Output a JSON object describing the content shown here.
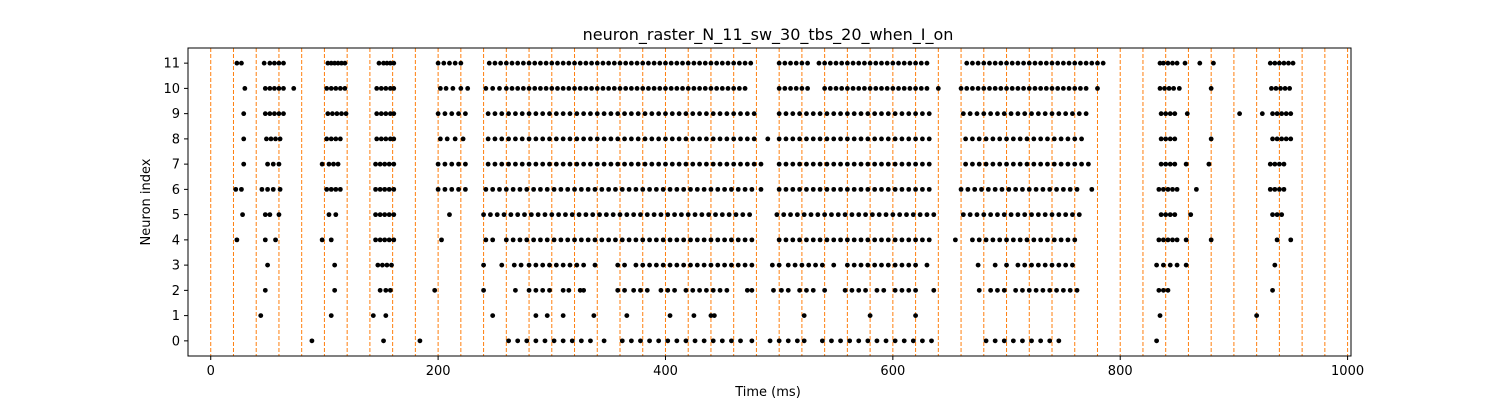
{
  "chart_data": {
    "type": "scatter",
    "title": "neuron_raster_N_11_sw_30_tbs_20_when_I_on",
    "xlabel": "Time (ms)",
    "ylabel": "Neuron index",
    "xlim": [
      -20,
      1003
    ],
    "ylim": [
      -0.6,
      11.6
    ],
    "x_ticks": [
      0,
      200,
      400,
      600,
      800,
      1000
    ],
    "y_ticks": [
      0,
      1,
      2,
      3,
      4,
      5,
      6,
      7,
      8,
      9,
      10,
      11
    ],
    "grid": false,
    "legend": "none",
    "marker_color": "#000000",
    "stimulus_marker_color": "#ff7f0e",
    "stimulus_times_ms": [
      0,
      20,
      40,
      60,
      80,
      100,
      120,
      140,
      160,
      180,
      200,
      220,
      240,
      260,
      280,
      300,
      320,
      340,
      360,
      380,
      400,
      420,
      440,
      460,
      480,
      500,
      520,
      540,
      560,
      580,
      600,
      620,
      640,
      660,
      680,
      700,
      720,
      740,
      760,
      780,
      800,
      820,
      840,
      860,
      880,
      900,
      920,
      940,
      960,
      980,
      1000
    ],
    "spikes": [
      {
        "neuron": 11,
        "times": [
          23,
          27,
          47,
          52,
          56,
          60,
          64,
          103,
          106,
          109,
          112,
          115,
          118,
          148,
          152,
          155,
          158,
          161,
          200,
          205,
          210,
          215,
          220,
          245,
          250,
          255,
          260,
          265,
          270,
          275,
          280,
          285,
          290,
          295,
          300,
          305,
          310,
          315,
          320,
          325,
          330,
          335,
          340,
          345,
          350,
          355,
          360,
          365,
          370,
          375,
          380,
          385,
          390,
          395,
          400,
          405,
          410,
          415,
          420,
          425,
          430,
          435,
          440,
          445,
          450,
          455,
          460,
          465,
          470,
          475,
          500,
          505,
          510,
          515,
          520,
          525,
          535,
          540,
          545,
          550,
          555,
          560,
          565,
          570,
          575,
          580,
          585,
          590,
          595,
          600,
          605,
          610,
          615,
          620,
          625,
          630,
          665,
          670,
          675,
          680,
          685,
          690,
          695,
          700,
          705,
          710,
          715,
          720,
          725,
          730,
          735,
          740,
          745,
          750,
          755,
          760,
          765,
          770,
          775,
          780,
          785,
          835,
          838,
          842,
          846,
          850,
          857,
          870,
          882,
          932,
          936,
          940,
          944,
          948,
          952
        ]
      },
      {
        "neuron": 10,
        "times": [
          30,
          48,
          52,
          56,
          60,
          64,
          73,
          102,
          106,
          110,
          114,
          118,
          146,
          150,
          154,
          158,
          161,
          202,
          207,
          213,
          220,
          226,
          242,
          248,
          254,
          260,
          265,
          270,
          275,
          280,
          285,
          290,
          295,
          300,
          305,
          310,
          315,
          320,
          325,
          330,
          335,
          340,
          345,
          350,
          355,
          360,
          365,
          370,
          375,
          380,
          385,
          390,
          395,
          400,
          405,
          410,
          415,
          420,
          425,
          430,
          435,
          440,
          445,
          450,
          455,
          460,
          465,
          470,
          500,
          505,
          510,
          515,
          520,
          525,
          540,
          545,
          550,
          555,
          560,
          565,
          570,
          575,
          580,
          585,
          590,
          595,
          600,
          605,
          610,
          615,
          620,
          625,
          630,
          640,
          660,
          665,
          670,
          675,
          680,
          685,
          690,
          695,
          700,
          705,
          710,
          715,
          720,
          725,
          730,
          735,
          740,
          745,
          750,
          755,
          760,
          765,
          770,
          780,
          835,
          839,
          843,
          847,
          852,
          880,
          933,
          937,
          941,
          945,
          949
        ]
      },
      {
        "neuron": 9,
        "times": [
          29,
          48,
          52,
          56,
          60,
          64,
          103,
          107,
          111,
          115,
          119,
          146,
          150,
          154,
          158,
          161,
          200,
          206,
          212,
          218,
          224,
          244,
          250,
          256,
          262,
          268,
          274,
          280,
          286,
          292,
          298,
          304,
          310,
          316,
          322,
          328,
          334,
          340,
          346,
          352,
          358,
          364,
          370,
          376,
          382,
          388,
          394,
          400,
          406,
          412,
          418,
          424,
          430,
          436,
          442,
          448,
          454,
          460,
          466,
          472,
          478,
          500,
          506,
          512,
          518,
          524,
          530,
          536,
          542,
          548,
          554,
          560,
          566,
          572,
          578,
          584,
          590,
          596,
          602,
          608,
          614,
          620,
          626,
          632,
          662,
          668,
          674,
          680,
          686,
          692,
          698,
          704,
          710,
          716,
          722,
          728,
          734,
          740,
          746,
          752,
          758,
          764,
          770,
          836,
          840,
          844,
          848,
          859,
          905,
          925,
          934,
          938,
          942,
          946,
          950
        ]
      },
      {
        "neuron": 8,
        "times": [
          29,
          49,
          53,
          57,
          61,
          102,
          106,
          110,
          114,
          146,
          150,
          154,
          158,
          161,
          202,
          208,
          215,
          222,
          244,
          250,
          256,
          262,
          268,
          274,
          280,
          286,
          292,
          298,
          304,
          310,
          316,
          322,
          328,
          334,
          340,
          346,
          352,
          358,
          364,
          370,
          376,
          382,
          388,
          394,
          400,
          406,
          412,
          418,
          424,
          430,
          436,
          442,
          448,
          454,
          460,
          466,
          472,
          478,
          490,
          500,
          506,
          512,
          518,
          524,
          530,
          536,
          542,
          548,
          554,
          560,
          566,
          572,
          578,
          584,
          590,
          596,
          602,
          608,
          614,
          620,
          626,
          632,
          664,
          670,
          676,
          682,
          688,
          694,
          700,
          706,
          712,
          718,
          724,
          730,
          736,
          742,
          748,
          754,
          760,
          766,
          836,
          840,
          844,
          848,
          880,
          934,
          938,
          942,
          946,
          950
        ]
      },
      {
        "neuron": 7,
        "times": [
          29,
          50,
          55,
          60,
          98,
          104,
          108,
          112,
          145,
          149,
          153,
          157,
          161,
          200,
          206,
          212,
          218,
          224,
          244,
          250,
          256,
          262,
          268,
          274,
          280,
          286,
          292,
          298,
          304,
          310,
          316,
          322,
          328,
          334,
          340,
          346,
          352,
          358,
          364,
          370,
          376,
          382,
          388,
          394,
          400,
          406,
          412,
          418,
          424,
          430,
          436,
          442,
          448,
          454,
          460,
          466,
          472,
          478,
          484,
          500,
          506,
          512,
          518,
          524,
          530,
          536,
          542,
          548,
          554,
          560,
          566,
          572,
          578,
          584,
          590,
          596,
          602,
          608,
          614,
          620,
          626,
          632,
          664,
          670,
          676,
          682,
          688,
          694,
          700,
          706,
          712,
          718,
          724,
          730,
          736,
          742,
          748,
          754,
          760,
          766,
          772,
          836,
          840,
          844,
          848,
          858,
          878,
          932,
          936,
          940,
          944
        ]
      },
      {
        "neuron": 6,
        "times": [
          22,
          27,
          45,
          50,
          55,
          61,
          102,
          106,
          110,
          114,
          145,
          149,
          153,
          157,
          161,
          200,
          206,
          212,
          218,
          224,
          242,
          248,
          254,
          260,
          266,
          272,
          278,
          284,
          290,
          296,
          302,
          308,
          314,
          320,
          326,
          332,
          338,
          344,
          350,
          356,
          362,
          368,
          374,
          380,
          386,
          392,
          398,
          404,
          410,
          416,
          422,
          428,
          434,
          440,
          446,
          452,
          458,
          464,
          470,
          476,
          484,
          500,
          506,
          512,
          518,
          524,
          530,
          536,
          542,
          548,
          554,
          560,
          566,
          572,
          578,
          584,
          590,
          596,
          602,
          608,
          614,
          620,
          626,
          632,
          660,
          666,
          672,
          678,
          684,
          690,
          696,
          702,
          708,
          714,
          720,
          726,
          732,
          738,
          744,
          750,
          756,
          762,
          775,
          834,
          838,
          842,
          846,
          850,
          867,
          932,
          936,
          940,
          944
        ]
      },
      {
        "neuron": 5,
        "times": [
          28,
          48,
          52,
          60,
          104,
          110,
          145,
          149,
          153,
          157,
          161,
          210,
          240,
          246,
          252,
          258,
          264,
          270,
          276,
          282,
          288,
          294,
          300,
          306,
          312,
          318,
          324,
          330,
          336,
          342,
          348,
          354,
          360,
          366,
          372,
          378,
          384,
          390,
          396,
          402,
          408,
          414,
          420,
          426,
          432,
          438,
          444,
          450,
          456,
          462,
          468,
          474,
          498,
          504,
          510,
          516,
          522,
          528,
          534,
          540,
          546,
          552,
          558,
          564,
          570,
          576,
          582,
          588,
          594,
          600,
          606,
          612,
          618,
          624,
          630,
          636,
          662,
          668,
          674,
          680,
          686,
          692,
          698,
          704,
          710,
          716,
          722,
          728,
          734,
          740,
          746,
          752,
          758,
          764,
          836,
          840,
          844,
          848,
          862,
          934,
          938,
          942
        ]
      },
      {
        "neuron": 4,
        "times": [
          23,
          48,
          57,
          98,
          106,
          145,
          149,
          153,
          157,
          161,
          203,
          242,
          248,
          260,
          266,
          272,
          278,
          284,
          290,
          296,
          302,
          308,
          314,
          320,
          326,
          332,
          338,
          344,
          350,
          356,
          362,
          368,
          374,
          380,
          386,
          392,
          398,
          404,
          410,
          416,
          422,
          428,
          434,
          440,
          446,
          452,
          458,
          464,
          470,
          476,
          500,
          506,
          512,
          518,
          524,
          530,
          536,
          542,
          548,
          554,
          560,
          566,
          572,
          578,
          584,
          590,
          596,
          602,
          608,
          614,
          620,
          626,
          632,
          655,
          670,
          676,
          682,
          688,
          694,
          700,
          706,
          712,
          718,
          724,
          730,
          736,
          742,
          748,
          754,
          760,
          834,
          838,
          842,
          846,
          850,
          858,
          880,
          938,
          950
        ]
      },
      {
        "neuron": 3,
        "times": [
          50,
          109,
          147,
          151,
          155,
          159,
          240,
          256,
          267,
          273,
          280,
          286,
          292,
          298,
          304,
          310,
          316,
          322,
          328,
          338,
          358,
          364,
          374,
          380,
          386,
          392,
          398,
          404,
          410,
          416,
          422,
          428,
          434,
          440,
          446,
          452,
          458,
          464,
          470,
          476,
          494,
          500,
          508,
          514,
          520,
          526,
          532,
          538,
          548,
          560,
          566,
          572,
          578,
          584,
          590,
          596,
          602,
          608,
          614,
          620,
          630,
          675,
          690,
          700,
          710,
          716,
          722,
          728,
          734,
          740,
          746,
          752,
          758,
          832,
          838,
          844,
          850,
          858,
          936
        ]
      },
      {
        "neuron": 2,
        "times": [
          48,
          109,
          149,
          154,
          158,
          197,
          240,
          268,
          280,
          286,
          292,
          298,
          310,
          315,
          325,
          328,
          358,
          364,
          372,
          378,
          384,
          396,
          402,
          408,
          418,
          424,
          430,
          436,
          442,
          448,
          454,
          472,
          476,
          495,
          502,
          508,
          518,
          524,
          530,
          540,
          558,
          564,
          570,
          576,
          586,
          592,
          602,
          608,
          614,
          620,
          636,
          676,
          686,
          692,
          698,
          708,
          714,
          720,
          726,
          732,
          738,
          744,
          750,
          756,
          762,
          834,
          838,
          842,
          934
        ]
      },
      {
        "neuron": 1,
        "times": [
          44,
          106,
          143,
          154,
          248,
          286,
          296,
          310,
          337,
          366,
          404,
          425,
          440,
          443,
          522,
          580,
          620,
          835,
          920
        ]
      },
      {
        "neuron": 0,
        "times": [
          89,
          152,
          184,
          262,
          270,
          278,
          286,
          294,
          302,
          310,
          318,
          326,
          334,
          346,
          362,
          370,
          378,
          386,
          394,
          402,
          410,
          418,
          426,
          434,
          442,
          450,
          458,
          466,
          476,
          492,
          500,
          508,
          516,
          522,
          538,
          546,
          554,
          562,
          570,
          578,
          586,
          594,
          602,
          610,
          618,
          626,
          634,
          682,
          690,
          698,
          706,
          714,
          722,
          730,
          738,
          746,
          832
        ]
      }
    ]
  }
}
